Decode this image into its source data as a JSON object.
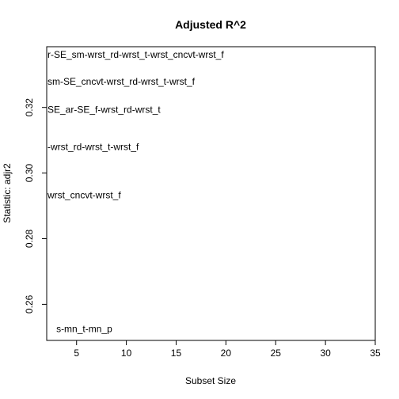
{
  "chart_data": {
    "type": "scatter",
    "title": "Adjusted R^2",
    "xlabel": "Subset Size",
    "ylabel": "Statistic: adjr2",
    "xlim": [
      2,
      35
    ],
    "ylim": [
      0.249,
      0.3385
    ],
    "x_ticks": [
      5,
      10,
      15,
      20,
      25,
      30,
      35
    ],
    "y_ticks": [
      0.26,
      0.28,
      0.3,
      0.32
    ],
    "x_tick_labels": [
      "5",
      "10",
      "15",
      "20",
      "25",
      "30",
      "35"
    ],
    "y_tick_labels": [
      "0.26",
      "0.28",
      "0.30",
      "0.32"
    ],
    "grid": false,
    "points": [
      {
        "x": 3,
        "y": 0.2525,
        "label": "s-mn_t-mn_p"
      },
      {
        "x": 2,
        "y": 0.2933,
        "label": "wrst_cncvt-wrst_f"
      },
      {
        "x": 2,
        "y": 0.308,
        "label": "-wrst_rd-wrst_t-wrst_f"
      },
      {
        "x": 2,
        "y": 0.3193,
        "label": "SE_ar-SE_f-wrst_rd-wrst_t"
      },
      {
        "x": 2,
        "y": 0.3279,
        "label": "sm-SE_cncvt-wrst_rd-wrst_t-wrst_f"
      },
      {
        "x": 2,
        "y": 0.3361,
        "label": "r-SE_sm-wrst_rd-wrst_t-wrst_cncvt-wrst_f"
      }
    ]
  }
}
